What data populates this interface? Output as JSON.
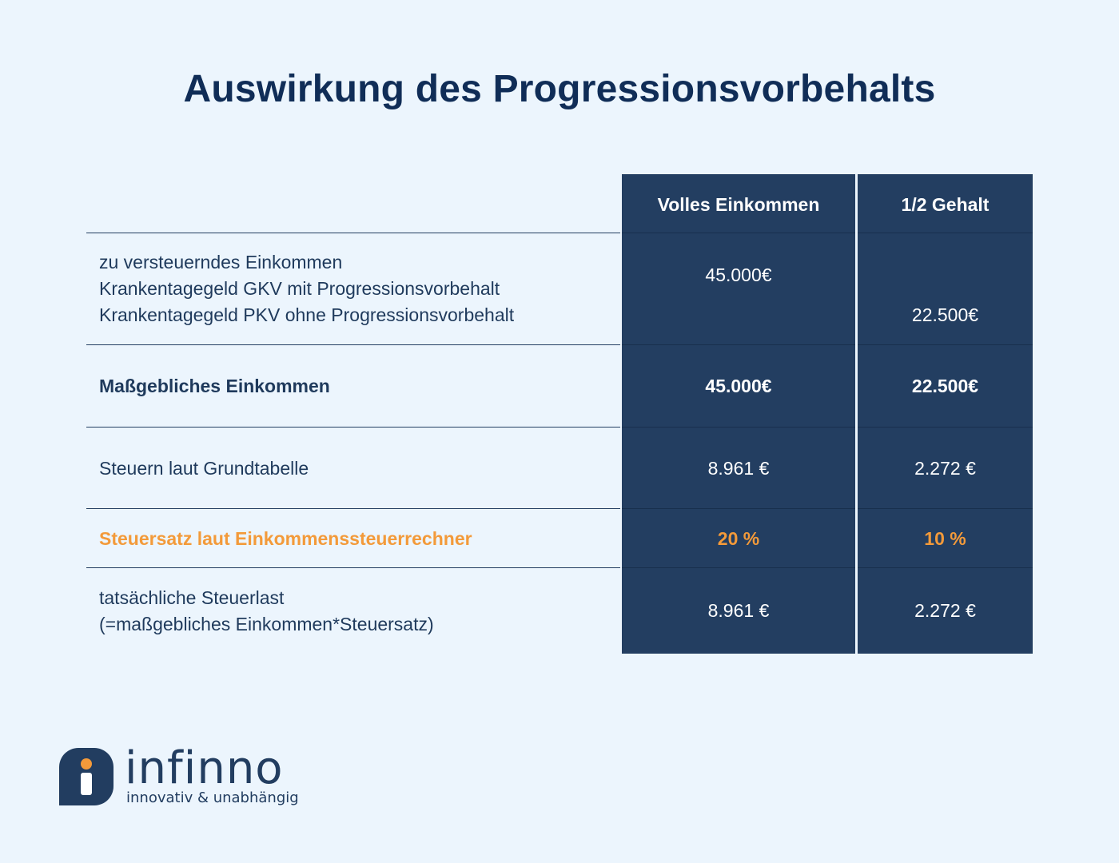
{
  "title": "Auswirkung des Progressionsvorbehalts",
  "table": {
    "headers": [
      "Volles Einkommen",
      "1/2 Gehalt"
    ],
    "rows": [
      {
        "label_lines": [
          "zu versteuerndes Einkommen",
          "Krankentagegeld GKV mit Progressionsvorbehalt",
          "Krankentagegeld PKV ohne Progressionsvorbehalt"
        ],
        "col1": "45.000€",
        "col2": "22.500€"
      },
      {
        "label": "Maßgebliches Einkommen",
        "col1": "45.000€",
        "col2": "22.500€"
      },
      {
        "label": "Steuern laut Grundtabelle",
        "col1": "8.961 €",
        "col2": "2.272 €"
      },
      {
        "label": "Steuersatz laut Einkommenssteuerrechner",
        "col1": "20 %",
        "col2": "10 %"
      },
      {
        "label_lines": [
          "tatsächliche Steuerlast",
          "(=maßgebliches Einkommen*Steuersatz)"
        ],
        "col1": "8.961 €",
        "col2": "2.272 €"
      }
    ]
  },
  "logo": {
    "name": "infinno",
    "tagline": "innovativ & unabhängig"
  },
  "colors": {
    "background": "#ecf5fd",
    "navy": "#233e61",
    "accent_orange": "#f39a3a",
    "title": "#102d57"
  }
}
